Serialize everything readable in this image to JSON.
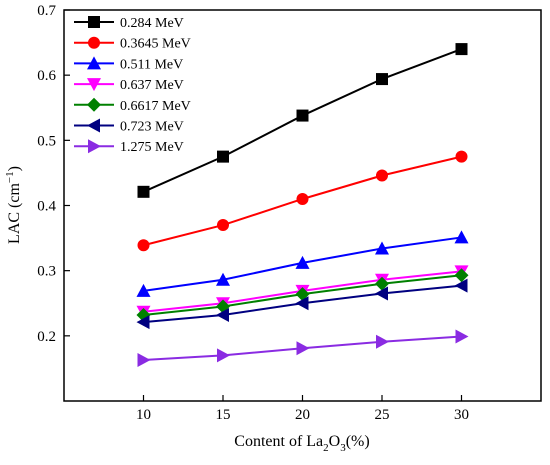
{
  "chart_data": {
    "type": "line",
    "xlabel": "Content of La2O3 (%)",
    "xlabel_parts": {
      "pre": "Content of La",
      "sub1": "2",
      "mid": "O",
      "sub2": "3",
      "post": "(%)"
    },
    "ylabel": "LAC (cm−1)",
    "ylabel_parts": {
      "pre": "LAC (cm",
      "sup": "−1",
      "post": ")"
    },
    "x": [
      10,
      15,
      20,
      25,
      30
    ],
    "xlim": [
      5,
      35
    ],
    "ylim": [
      0.1,
      0.7
    ],
    "xticks": [
      10,
      15,
      20,
      25,
      30
    ],
    "yticks": [
      0.2,
      0.3,
      0.4,
      0.5,
      0.6,
      0.7
    ],
    "ytick_labels": [
      "0.2",
      "0.3",
      "0.4",
      "0.5",
      "0.6",
      "0.7"
    ],
    "grid": false,
    "legend_position": "top-left",
    "series": [
      {
        "name": "0.284 MeV",
        "color": "#000000",
        "marker": "square",
        "values": [
          0.421,
          0.475,
          0.538,
          0.594,
          0.64
        ]
      },
      {
        "name": "0.3645 MeV",
        "color": "#ff0000",
        "marker": "circle",
        "values": [
          0.339,
          0.37,
          0.41,
          0.446,
          0.475
        ]
      },
      {
        "name": "0.511 MeV",
        "color": "#0000ff",
        "marker": "triangle-up",
        "values": [
          0.269,
          0.286,
          0.312,
          0.334,
          0.351
        ]
      },
      {
        "name": "0.637 MeV",
        "color": "#ff00ff",
        "marker": "triangle-down",
        "values": [
          0.237,
          0.25,
          0.269,
          0.286,
          0.299
        ]
      },
      {
        "name": "0.6617 MeV",
        "color": "#008000",
        "marker": "diamond",
        "values": [
          0.232,
          0.245,
          0.264,
          0.28,
          0.293
        ]
      },
      {
        "name": "0.723 MeV",
        "color": "#000080",
        "marker": "triangle-left",
        "values": [
          0.221,
          0.232,
          0.25,
          0.265,
          0.277
        ]
      },
      {
        "name": "1.275 MeV",
        "color": "#8a2be2",
        "marker": "triangle-right",
        "values": [
          0.163,
          0.17,
          0.181,
          0.191,
          0.199
        ]
      }
    ]
  }
}
